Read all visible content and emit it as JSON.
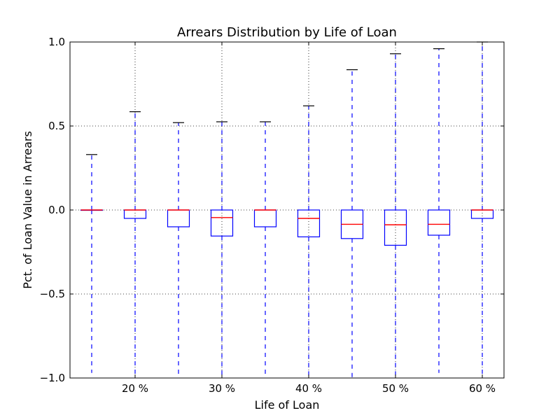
{
  "chart_data": {
    "type": "box",
    "title": "Arrears Distribution by Life of Loan",
    "xlabel": "Life of Loan",
    "ylabel": "Pct. of Loan Value in Arrears",
    "ylim": [
      -1.0,
      1.0
    ],
    "grid": true,
    "yticks": [
      {
        "value": 1.0,
        "label": "1.0"
      },
      {
        "value": 0.5,
        "label": "0.5"
      },
      {
        "value": 0.0,
        "label": "0.0"
      },
      {
        "value": -0.5,
        "label": "−0.5"
      },
      {
        "value": -1.0,
        "label": "−1.0"
      }
    ],
    "xticks": [
      {
        "index": 1,
        "label": "20 %"
      },
      {
        "index": 3,
        "label": "30 %"
      },
      {
        "index": 5,
        "label": "40 %"
      },
      {
        "index": 7,
        "label": "50 %"
      },
      {
        "index": 9,
        "label": "60 %"
      }
    ],
    "boxes": [
      {
        "whisker_low": -0.97,
        "q1": 0.0,
        "median": 0.0,
        "q3": 0.0,
        "whisker_high": 0.33
      },
      {
        "whisker_low": -1.0,
        "q1": -0.05,
        "median": 0.0,
        "q3": 0.0,
        "whisker_high": 0.585
      },
      {
        "whisker_low": -1.0,
        "q1": -0.1,
        "median": 0.0,
        "q3": 0.0,
        "whisker_high": 0.52
      },
      {
        "whisker_low": -1.0,
        "q1": -0.155,
        "median": -0.045,
        "q3": 0.0,
        "whisker_high": 0.525
      },
      {
        "whisker_low": -1.0,
        "q1": -0.1,
        "median": 0.0,
        "q3": 0.0,
        "whisker_high": 0.525
      },
      {
        "whisker_low": -1.0,
        "q1": -0.16,
        "median": -0.05,
        "q3": 0.0,
        "whisker_high": 0.62
      },
      {
        "whisker_low": -1.0,
        "q1": -0.17,
        "median": -0.085,
        "q3": 0.0,
        "whisker_high": 0.835
      },
      {
        "whisker_low": -1.0,
        "q1": -0.21,
        "median": -0.088,
        "q3": 0.0,
        "whisker_high": 0.93
      },
      {
        "whisker_low": -0.97,
        "q1": -0.15,
        "median": -0.085,
        "q3": 0.0,
        "whisker_high": 0.96
      },
      {
        "whisker_low": -1.0,
        "q1": -0.05,
        "median": 0.0,
        "q3": 0.0,
        "whisker_high": 1.0
      }
    ],
    "colors": {
      "box": "#0000ff",
      "median": "#ff0000",
      "whisker": "#0000ff",
      "cap": "#000000",
      "grid": "#000000"
    }
  }
}
